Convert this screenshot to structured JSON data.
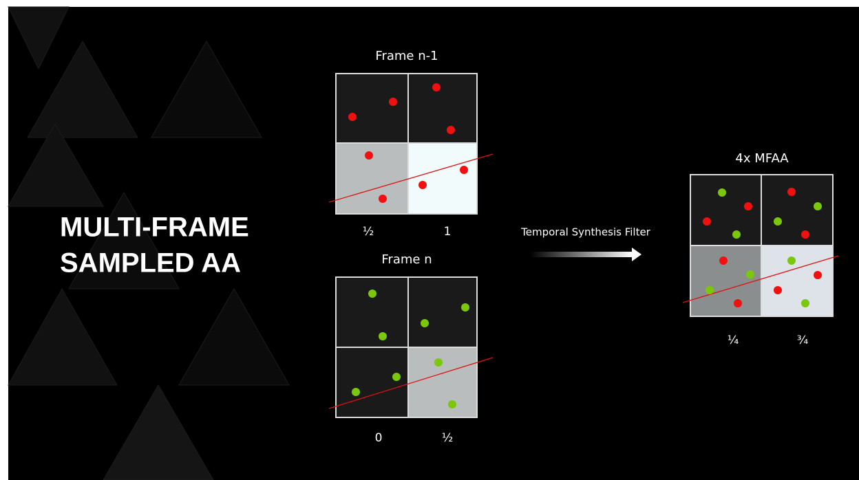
{
  "title": {
    "lines": [
      "MULTI-FRAME",
      "SAMPLED AA"
    ]
  },
  "frames": [
    {
      "label": "Frame n-1",
      "coverage": [
        "½",
        "1"
      ]
    },
    {
      "label": "Frame n",
      "coverage": [
        "0",
        "½"
      ]
    }
  ],
  "filter": {
    "label": "Temporal Synthesis Filter"
  },
  "result": {
    "label": "4x MFAA",
    "coverage": [
      "¼",
      "¾"
    ]
  }
}
